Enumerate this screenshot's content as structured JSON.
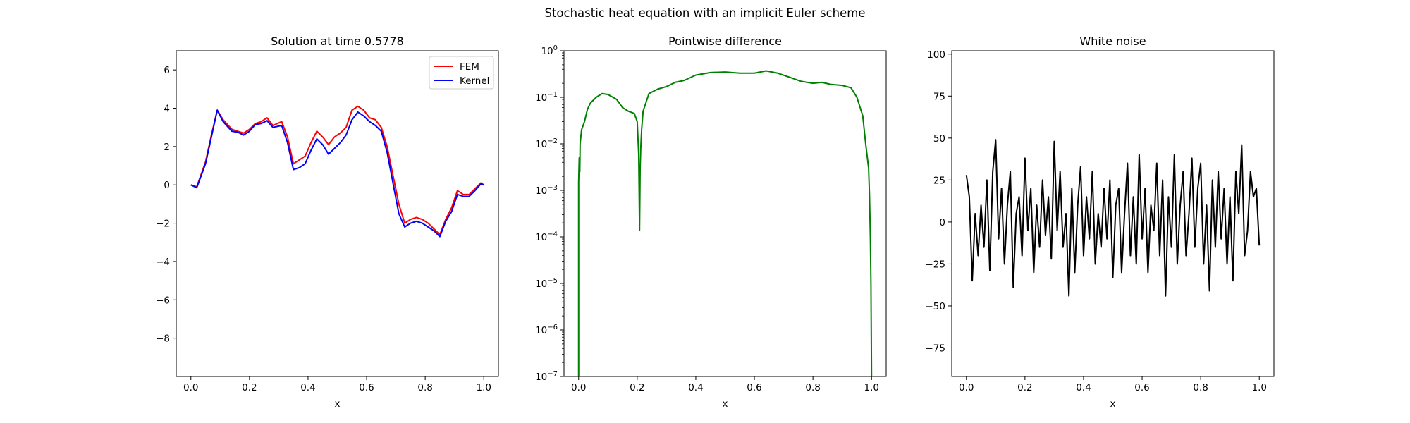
{
  "figure": {
    "suptitle": "Stochastic heat equation with an implicit Euler scheme"
  },
  "chart_data": [
    {
      "type": "line",
      "title": "Solution at time 0.5778",
      "xlabel": "x",
      "ylabel": "",
      "xlim": [
        -0.05,
        1.05
      ],
      "ylim": [
        -10,
        7
      ],
      "xticks": [
        0.0,
        0.2,
        0.4,
        0.6,
        0.8,
        1.0
      ],
      "xtick_labels": [
        "0.0",
        "0.2",
        "0.4",
        "0.6",
        "0.8",
        "1.0"
      ],
      "yticks": [
        -8,
        -6,
        -4,
        -2,
        0,
        2,
        4,
        6
      ],
      "ytick_labels": [
        "−8",
        "−6",
        "−4",
        "−2",
        "0",
        "2",
        "4",
        "6"
      ],
      "legend": "top-right",
      "grid": false,
      "series": [
        {
          "name": "FEM",
          "color": "#ff0000",
          "x": [
            0.0,
            0.02,
            0.05,
            0.07,
            0.09,
            0.11,
            0.14,
            0.16,
            0.18,
            0.2,
            0.22,
            0.24,
            0.26,
            0.28,
            0.31,
            0.33,
            0.35,
            0.37,
            0.39,
            0.41,
            0.43,
            0.45,
            0.47,
            0.49,
            0.51,
            0.53,
            0.55,
            0.57,
            0.59,
            0.61,
            0.63,
            0.65,
            0.67,
            0.69,
            0.71,
            0.73,
            0.75,
            0.77,
            0.79,
            0.81,
            0.83,
            0.85,
            0.87,
            0.89,
            0.91,
            0.93,
            0.95,
            0.97,
            0.99,
            1.0
          ],
          "y": [
            0.0,
            -0.1,
            1.2,
            2.6,
            3.9,
            3.4,
            2.9,
            2.8,
            2.7,
            2.9,
            3.2,
            3.3,
            3.5,
            3.1,
            3.3,
            2.5,
            1.1,
            1.3,
            1.5,
            2.2,
            2.8,
            2.5,
            2.1,
            2.5,
            2.7,
            3.0,
            3.9,
            4.1,
            3.9,
            3.5,
            3.4,
            3.0,
            2.0,
            0.5,
            -1.0,
            -2.0,
            -1.8,
            -1.7,
            -1.8,
            -2.0,
            -2.3,
            -2.6,
            -1.8,
            -1.2,
            -0.3,
            -0.5,
            -0.5,
            -0.2,
            0.1,
            0.0
          ]
        },
        {
          "name": "Kernel",
          "color": "#0000ff",
          "x": [
            0.0,
            0.02,
            0.05,
            0.07,
            0.09,
            0.11,
            0.14,
            0.16,
            0.18,
            0.2,
            0.22,
            0.24,
            0.26,
            0.28,
            0.31,
            0.33,
            0.35,
            0.37,
            0.39,
            0.41,
            0.43,
            0.45,
            0.47,
            0.49,
            0.51,
            0.53,
            0.55,
            0.57,
            0.59,
            0.61,
            0.63,
            0.65,
            0.67,
            0.69,
            0.71,
            0.73,
            0.75,
            0.77,
            0.79,
            0.81,
            0.83,
            0.85,
            0.87,
            0.89,
            0.91,
            0.93,
            0.95,
            0.97,
            0.99,
            1.0
          ],
          "y": [
            0.0,
            -0.15,
            1.1,
            2.5,
            3.9,
            3.3,
            2.8,
            2.75,
            2.6,
            2.8,
            3.15,
            3.2,
            3.35,
            3.0,
            3.1,
            2.2,
            0.8,
            0.9,
            1.1,
            1.8,
            2.4,
            2.1,
            1.6,
            1.9,
            2.2,
            2.6,
            3.4,
            3.8,
            3.6,
            3.3,
            3.1,
            2.8,
            1.7,
            0.1,
            -1.5,
            -2.2,
            -2.0,
            -1.9,
            -2.0,
            -2.2,
            -2.4,
            -2.7,
            -1.9,
            -1.4,
            -0.5,
            -0.6,
            -0.6,
            -0.3,
            0.05,
            0.0
          ]
        }
      ]
    },
    {
      "type": "line",
      "title": "Pointwise difference",
      "xlabel": "x",
      "ylabel": "",
      "yscale": "log",
      "xlim": [
        -0.05,
        1.05
      ],
      "ylim": [
        1e-07,
        1
      ],
      "xticks": [
        0.0,
        0.2,
        0.4,
        0.6,
        0.8,
        1.0
      ],
      "xtick_labels": [
        "0.0",
        "0.2",
        "0.4",
        "0.6",
        "0.8",
        "1.0"
      ],
      "ytick_exponents": [
        -7,
        -6,
        -5,
        -4,
        -3,
        -2,
        -1,
        0
      ],
      "ytick_base": "10",
      "grid": false,
      "series": [
        {
          "color": "#008000",
          "x": [
            0.0,
            0.0,
            0.002,
            0.004,
            0.005,
            0.01,
            0.02,
            0.03,
            0.04,
            0.06,
            0.08,
            0.1,
            0.13,
            0.15,
            0.17,
            0.19,
            0.2,
            0.205,
            0.208,
            0.21,
            0.212,
            0.215,
            0.22,
            0.24,
            0.27,
            0.3,
            0.33,
            0.36,
            0.4,
            0.45,
            0.5,
            0.55,
            0.6,
            0.64,
            0.68,
            0.72,
            0.76,
            0.8,
            0.83,
            0.86,
            0.9,
            0.93,
            0.95,
            0.97,
            0.98,
            0.99,
            0.993,
            0.996,
            0.998,
            1.0
          ],
          "y": [
            1e-07,
            0.0015,
            0.005,
            0.0025,
            0.01,
            0.02,
            0.03,
            0.055,
            0.075,
            0.1,
            0.12,
            0.115,
            0.09,
            0.06,
            0.05,
            0.045,
            0.03,
            0.006,
            0.00014,
            0.003,
            0.008,
            0.02,
            0.05,
            0.12,
            0.15,
            0.17,
            0.21,
            0.23,
            0.3,
            0.34,
            0.35,
            0.33,
            0.33,
            0.37,
            0.33,
            0.27,
            0.22,
            0.2,
            0.21,
            0.19,
            0.18,
            0.16,
            0.1,
            0.04,
            0.01,
            0.003,
            0.0008,
            0.0001,
            1e-05,
            1e-07
          ]
        }
      ]
    },
    {
      "type": "line",
      "title": "White noise",
      "xlabel": "x",
      "ylabel": "",
      "xlim": [
        -0.05,
        1.05
      ],
      "ylim": [
        -92,
        102
      ],
      "xticks": [
        0.0,
        0.2,
        0.4,
        0.6,
        0.8,
        1.0
      ],
      "xtick_labels": [
        "0.0",
        "0.2",
        "0.4",
        "0.6",
        "0.8",
        "1.0"
      ],
      "yticks": [
        -75,
        -50,
        -25,
        0,
        25,
        50,
        75,
        100
      ],
      "ytick_labels": [
        "−75",
        "−50",
        "−25",
        "0",
        "25",
        "50",
        "75",
        "100"
      ],
      "grid": false,
      "series": [
        {
          "color": "#000000",
          "x": [
            0.0,
            0.01,
            0.02,
            0.03,
            0.04,
            0.05,
            0.06,
            0.07,
            0.08,
            0.09,
            0.1,
            0.11,
            0.12,
            0.13,
            0.14,
            0.15,
            0.16,
            0.17,
            0.18,
            0.19,
            0.2,
            0.21,
            0.22,
            0.23,
            0.24,
            0.25,
            0.26,
            0.27,
            0.28,
            0.29,
            0.3,
            0.31,
            0.32,
            0.33,
            0.34,
            0.35,
            0.36,
            0.37,
            0.38,
            0.39,
            0.4,
            0.41,
            0.42,
            0.43,
            0.44,
            0.45,
            0.46,
            0.47,
            0.48,
            0.49,
            0.5,
            0.51,
            0.52,
            0.53,
            0.54,
            0.55,
            0.56,
            0.57,
            0.58,
            0.59,
            0.6,
            0.61,
            0.62,
            0.63,
            0.64,
            0.65,
            0.66,
            0.67,
            0.68,
            0.69,
            0.7,
            0.71,
            0.72,
            0.73,
            0.74,
            0.75,
            0.76,
            0.77,
            0.78,
            0.79,
            0.8,
            0.81,
            0.82,
            0.83,
            0.84,
            0.85,
            0.86,
            0.87,
            0.88,
            0.89,
            0.9,
            0.91,
            0.92,
            0.93,
            0.94,
            0.95,
            0.96,
            0.97,
            0.98,
            0.99,
            1.0
          ],
          "y": [
            28,
            15,
            -35,
            5,
            -20,
            10,
            -15,
            25,
            -29,
            30,
            49,
            -10,
            20,
            -25,
            10,
            30,
            -39,
            5,
            15,
            -20,
            38,
            -5,
            20,
            -30,
            10,
            -15,
            25,
            -8,
            15,
            -22,
            48,
            -5,
            30,
            -15,
            5,
            -44,
            20,
            -30,
            10,
            33,
            -20,
            15,
            -10,
            30,
            -25,
            5,
            -15,
            20,
            -10,
            25,
            -33,
            10,
            20,
            -30,
            5,
            35,
            -20,
            15,
            -25,
            40,
            -10,
            20,
            -30,
            10,
            -5,
            35,
            -20,
            25,
            -44,
            15,
            -15,
            40,
            -25,
            10,
            30,
            -20,
            5,
            38,
            -15,
            20,
            35,
            -25,
            10,
            -41,
            25,
            -15,
            30,
            -10,
            20,
            -25,
            15,
            -35,
            30,
            5,
            46,
            -20,
            -5,
            30,
            15,
            20,
            -14
          ]
        }
      ]
    }
  ]
}
